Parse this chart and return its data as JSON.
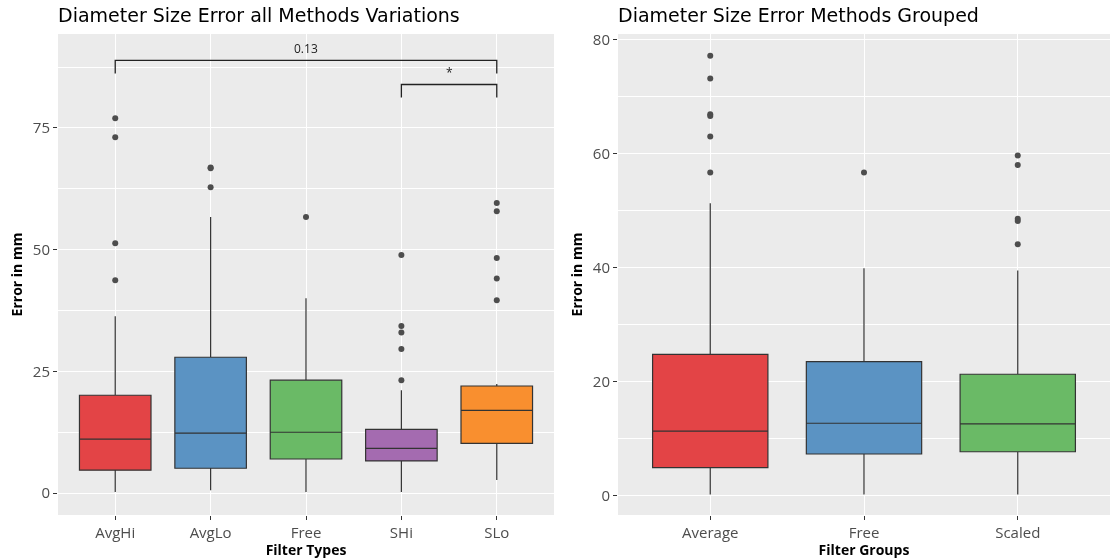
{
  "chart_data": [
    {
      "type": "box",
      "title": "Diameter Size Error all Methods Variations",
      "xlabel": "Filter Types",
      "ylabel": "Error in mm",
      "categories": [
        "AvgHi",
        "AvgLo",
        "Free",
        "SHi",
        "SLo"
      ],
      "colors": [
        "#e34446",
        "#5b93c3",
        "#6aba66",
        "#a46bb0",
        "#f98f2f"
      ],
      "boxes": [
        {
          "low": 0.2,
          "q1": 4.7,
          "median": 11.1,
          "q3": 20.1,
          "high": 36.3,
          "outliers": [
            77.0,
            73.1,
            51.3,
            43.7
          ]
        },
        {
          "low": 0.6,
          "q1": 5.1,
          "median": 12.3,
          "q3": 27.9,
          "high": 56.7,
          "outliers": [
            66.9,
            66.7,
            62.8
          ]
        },
        {
          "low": 0.2,
          "q1": 7.0,
          "median": 12.5,
          "q3": 23.2,
          "high": 40.0,
          "outliers": [
            56.7
          ]
        },
        {
          "low": 0.2,
          "q1": 6.6,
          "median": 9.2,
          "q3": 13.1,
          "high": 21.1,
          "outliers": [
            48.9,
            34.3,
            33.0,
            29.6,
            23.2
          ]
        },
        {
          "low": 2.7,
          "q1": 10.2,
          "median": 17.0,
          "q3": 22.0,
          "high": 22.4,
          "outliers": [
            59.6,
            57.9,
            48.3,
            44.1,
            39.6
          ]
        }
      ],
      "ylim": [
        -4.5,
        94.3
      ],
      "yticks": [
        0,
        25,
        50,
        75
      ],
      "grid": true,
      "annotations": [
        "0.13",
        "*"
      ]
    },
    {
      "type": "box",
      "title": "Diameter Size Error Methods Grouped",
      "xlabel": "Filter Groups",
      "ylabel": "Error in mm",
      "categories": [
        "Average",
        "Free",
        "Scaled"
      ],
      "colors": [
        "#e34446",
        "#5b93c3",
        "#6aba66"
      ],
      "boxes": [
        {
          "low": 0.2,
          "q1": 4.9,
          "median": 11.3,
          "q3": 24.8,
          "high": 51.3,
          "outliers": [
            77.2,
            73.2,
            66.9,
            66.6,
            63.0,
            56.7
          ]
        },
        {
          "low": 0.2,
          "q1": 7.3,
          "median": 12.7,
          "q3": 23.5,
          "high": 39.9,
          "outliers": [
            56.7
          ]
        },
        {
          "low": 0.2,
          "q1": 7.7,
          "median": 12.6,
          "q3": 21.3,
          "high": 39.5,
          "outliers": [
            59.7,
            58.0,
            48.6,
            48.2,
            44.1
          ]
        }
      ],
      "ylim": [
        -3.4,
        81.0
      ],
      "yticks": [
        0,
        20,
        40,
        60,
        80
      ],
      "grid": true
    }
  ]
}
